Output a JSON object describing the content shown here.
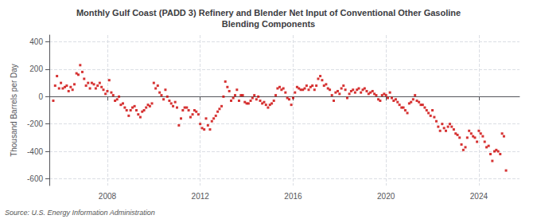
{
  "chart_data": {
    "type": "scatter",
    "title": "Monthly Gulf Coast (PADD 3) Refinery and Blender Net Input of Conventional Other Gasoline\nBlending Components",
    "ylabel": "Thousand Barrels per Day",
    "source": "Source: U.S. Energy Information Administration",
    "color": "#cc0000",
    "marker": "square",
    "grid": true,
    "ylim": [
      -650,
      450
    ],
    "yticks": [
      -600,
      -400,
      -200,
      0,
      200,
      400
    ],
    "xlim": [
      2005.5,
      2025.75
    ],
    "xticks": [
      2008,
      2012,
      2016,
      2020,
      2024
    ],
    "x": [
      2005.67,
      2005.75,
      2005.83,
      2005.92,
      2006.0,
      2006.08,
      2006.17,
      2006.25,
      2006.33,
      2006.42,
      2006.5,
      2006.58,
      2006.67,
      2006.75,
      2006.83,
      2006.92,
      2007.0,
      2007.08,
      2007.17,
      2007.25,
      2007.33,
      2007.42,
      2007.5,
      2007.58,
      2007.67,
      2007.75,
      2007.83,
      2007.92,
      2008.0,
      2008.08,
      2008.17,
      2008.25,
      2008.33,
      2008.42,
      2008.5,
      2008.58,
      2008.67,
      2008.75,
      2008.83,
      2008.92,
      2009.0,
      2009.08,
      2009.17,
      2009.25,
      2009.33,
      2009.42,
      2009.5,
      2009.58,
      2009.67,
      2009.75,
      2009.83,
      2009.92,
      2010.0,
      2010.08,
      2010.17,
      2010.25,
      2010.33,
      2010.42,
      2010.5,
      2010.58,
      2010.67,
      2010.75,
      2010.83,
      2010.92,
      2011.0,
      2011.08,
      2011.17,
      2011.25,
      2011.33,
      2011.42,
      2011.5,
      2011.58,
      2011.67,
      2011.75,
      2011.83,
      2011.92,
      2012.0,
      2012.08,
      2012.17,
      2012.25,
      2012.33,
      2012.42,
      2012.5,
      2012.58,
      2012.67,
      2012.75,
      2012.83,
      2012.92,
      2013.0,
      2013.08,
      2013.17,
      2013.25,
      2013.33,
      2013.42,
      2013.5,
      2013.58,
      2013.67,
      2013.75,
      2013.83,
      2013.92,
      2014.0,
      2014.08,
      2014.17,
      2014.25,
      2014.33,
      2014.42,
      2014.5,
      2014.58,
      2014.67,
      2014.75,
      2014.83,
      2014.92,
      2015.0,
      2015.08,
      2015.17,
      2015.25,
      2015.33,
      2015.42,
      2015.5,
      2015.58,
      2015.67,
      2015.75,
      2015.83,
      2015.92,
      2016.0,
      2016.08,
      2016.17,
      2016.25,
      2016.33,
      2016.42,
      2016.5,
      2016.58,
      2016.67,
      2016.75,
      2016.83,
      2016.92,
      2017.0,
      2017.08,
      2017.17,
      2017.25,
      2017.33,
      2017.42,
      2017.5,
      2017.58,
      2017.67,
      2017.75,
      2017.83,
      2017.92,
      2018.0,
      2018.08,
      2018.17,
      2018.25,
      2018.33,
      2018.42,
      2018.5,
      2018.58,
      2018.67,
      2018.75,
      2018.83,
      2018.92,
      2019.0,
      2019.08,
      2019.17,
      2019.25,
      2019.33,
      2019.42,
      2019.5,
      2019.58,
      2019.67,
      2019.75,
      2019.83,
      2019.92,
      2020.0,
      2020.08,
      2020.17,
      2020.25,
      2020.33,
      2020.42,
      2020.5,
      2020.58,
      2020.67,
      2020.75,
      2020.83,
      2020.92,
      2021.0,
      2021.08,
      2021.17,
      2021.25,
      2021.33,
      2021.42,
      2021.5,
      2021.58,
      2021.67,
      2021.75,
      2021.83,
      2021.92,
      2022.0,
      2022.08,
      2022.17,
      2022.25,
      2022.33,
      2022.42,
      2022.5,
      2022.58,
      2022.67,
      2022.75,
      2022.83,
      2022.92,
      2023.0,
      2023.08,
      2023.17,
      2023.25,
      2023.33,
      2023.42,
      2023.5,
      2023.58,
      2023.67,
      2023.75,
      2023.83,
      2023.92,
      2024.0,
      2024.08,
      2024.17,
      2024.25,
      2024.33,
      2024.42,
      2024.5,
      2024.58,
      2024.67,
      2024.75,
      2024.83,
      2024.92,
      2025.0,
      2025.08,
      2025.17
    ],
    "values": [
      -30,
      80,
      150,
      60,
      100,
      60,
      70,
      80,
      40,
      70,
      50,
      90,
      170,
      160,
      230,
      180,
      130,
      80,
      100,
      60,
      100,
      90,
      60,
      80,
      100,
      70,
      50,
      20,
      40,
      120,
      30,
      10,
      -30,
      -20,
      0,
      -60,
      -50,
      -80,
      -100,
      -140,
      -100,
      -80,
      -70,
      -100,
      -130,
      -150,
      -110,
      -100,
      -80,
      -60,
      -70,
      -50,
      100,
      60,
      80,
      30,
      10,
      -20,
      50,
      0,
      -30,
      -50,
      -70,
      -40,
      -80,
      -210,
      -160,
      -100,
      -80,
      -80,
      -100,
      -150,
      -130,
      -100,
      -110,
      -130,
      -200,
      -230,
      -240,
      -160,
      -210,
      -240,
      -180,
      -160,
      -140,
      -110,
      -90,
      -70,
      0,
      110,
      70,
      40,
      -30,
      -10,
      10,
      50,
      -30,
      10,
      10,
      -40,
      -50,
      -50,
      -30,
      -10,
      10,
      -20,
      0,
      -30,
      -50,
      -40,
      -60,
      -80,
      -60,
      -50,
      -30,
      10,
      60,
      70,
      50,
      60,
      30,
      -10,
      -20,
      -60,
      -10,
      30,
      70,
      60,
      50,
      50,
      60,
      80,
      50,
      70,
      80,
      50,
      80,
      130,
      150,
      120,
      80,
      90,
      60,
      50,
      10,
      -30,
      30,
      40,
      20,
      60,
      80,
      50,
      -10,
      20,
      40,
      50,
      30,
      50,
      60,
      30,
      50,
      60,
      40,
      20,
      30,
      40,
      20,
      10,
      -20,
      -30,
      10,
      20,
      10,
      -10,
      30,
      -10,
      -30,
      -20,
      -40,
      -60,
      -80,
      -80,
      -100,
      -120,
      -50,
      -40,
      -20,
      10,
      -30,
      -40,
      -60,
      -60,
      -80,
      -100,
      -120,
      -140,
      -100,
      -150,
      -180,
      -220,
      -250,
      -200,
      -230,
      -250,
      -220,
      -200,
      -220,
      -240,
      -270,
      -280,
      -300,
      -350,
      -390,
      -370,
      -300,
      -250,
      -270,
      -290,
      -300,
      -330,
      -250,
      -270,
      -290,
      -330,
      -370,
      -360,
      -420,
      -470,
      -400,
      -390,
      -400,
      -420,
      -270,
      -290,
      -540
    ]
  }
}
